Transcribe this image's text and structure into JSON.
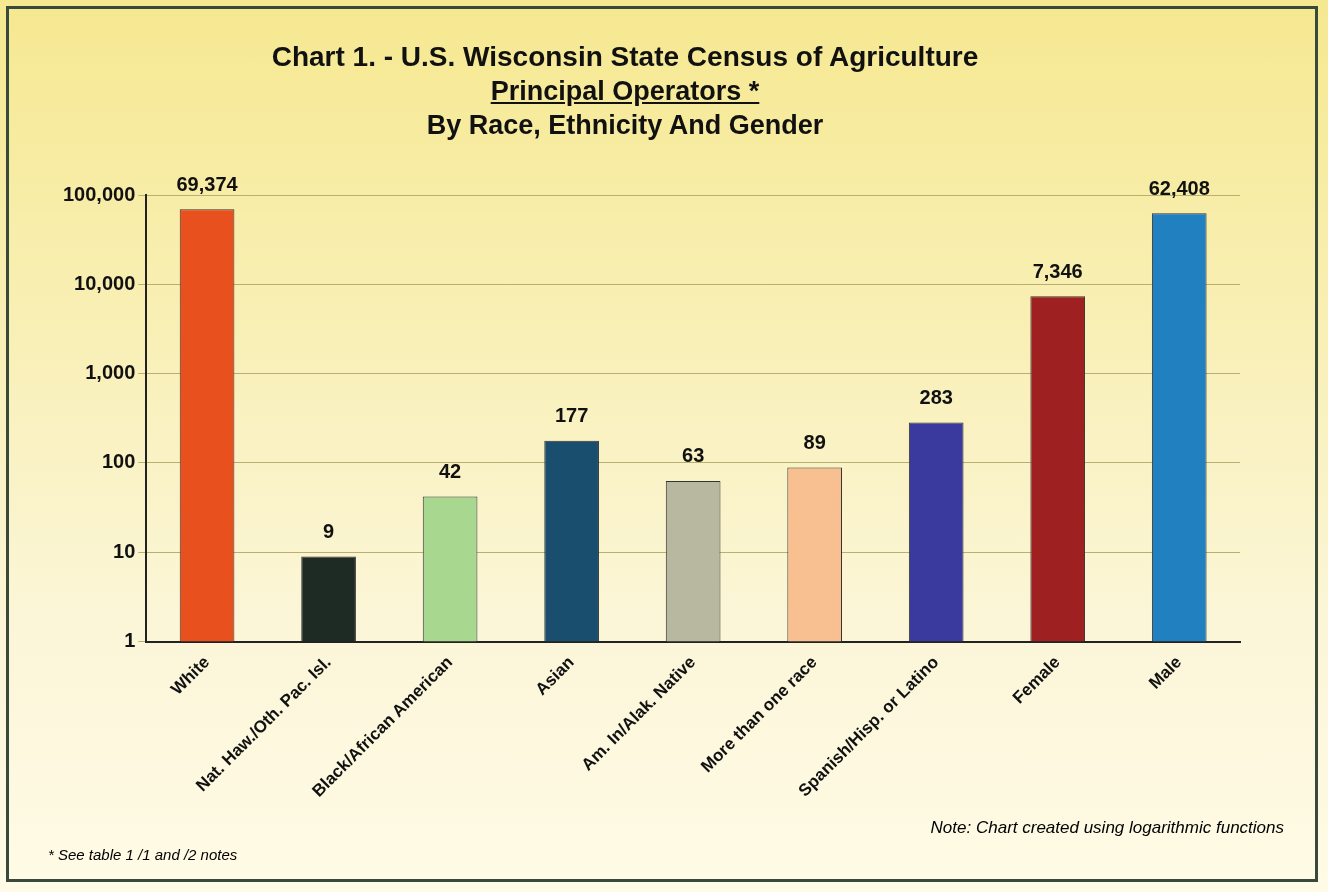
{
  "chart_data": {
    "type": "bar",
    "title": "Chart 1. - U.S. Wisconsin State Census of Agriculture",
    "subtitle": "Principal Operators *\nBy Race, Ethnicity And Gender",
    "categories": [
      "White",
      "Nat. Haw./Oth. Pac. Isl.",
      "Black/African American",
      "Asian",
      "Am. In/Alak. Native",
      "More than one race",
      "Spanish/Hisp. or Latino",
      "Female",
      "Male"
    ],
    "values": [
      69374,
      9,
      42,
      177,
      63,
      89,
      283,
      7346,
      62408
    ],
    "colors": [
      "#e8501e",
      "#1e2a24",
      "#a8d890",
      "#1a4e6e",
      "#b8b8a0",
      "#f8c090",
      "#3a3a9e",
      "#9e2020",
      "#2080c0"
    ],
    "log": true,
    "ylim": [
      1,
      100000
    ],
    "yticks": [
      {
        "value": 1,
        "label": "1"
      },
      {
        "value": 10,
        "label": "10"
      },
      {
        "value": 100,
        "label": "100"
      },
      {
        "value": 1000,
        "label": "1,000"
      },
      {
        "value": 10000,
        "label": "10,000"
      },
      {
        "value": 100000,
        "label": "100,000"
      }
    ],
    "grid": "y",
    "value_labels": [
      "69,374",
      "9",
      "42",
      "177",
      "63",
      "89",
      "283",
      "7,346",
      "62,408"
    ],
    "legend": false,
    "annotations": [
      "Note:  Chart created using logarithmic functions",
      "* See table 1  /1 and /2 notes"
    ]
  }
}
